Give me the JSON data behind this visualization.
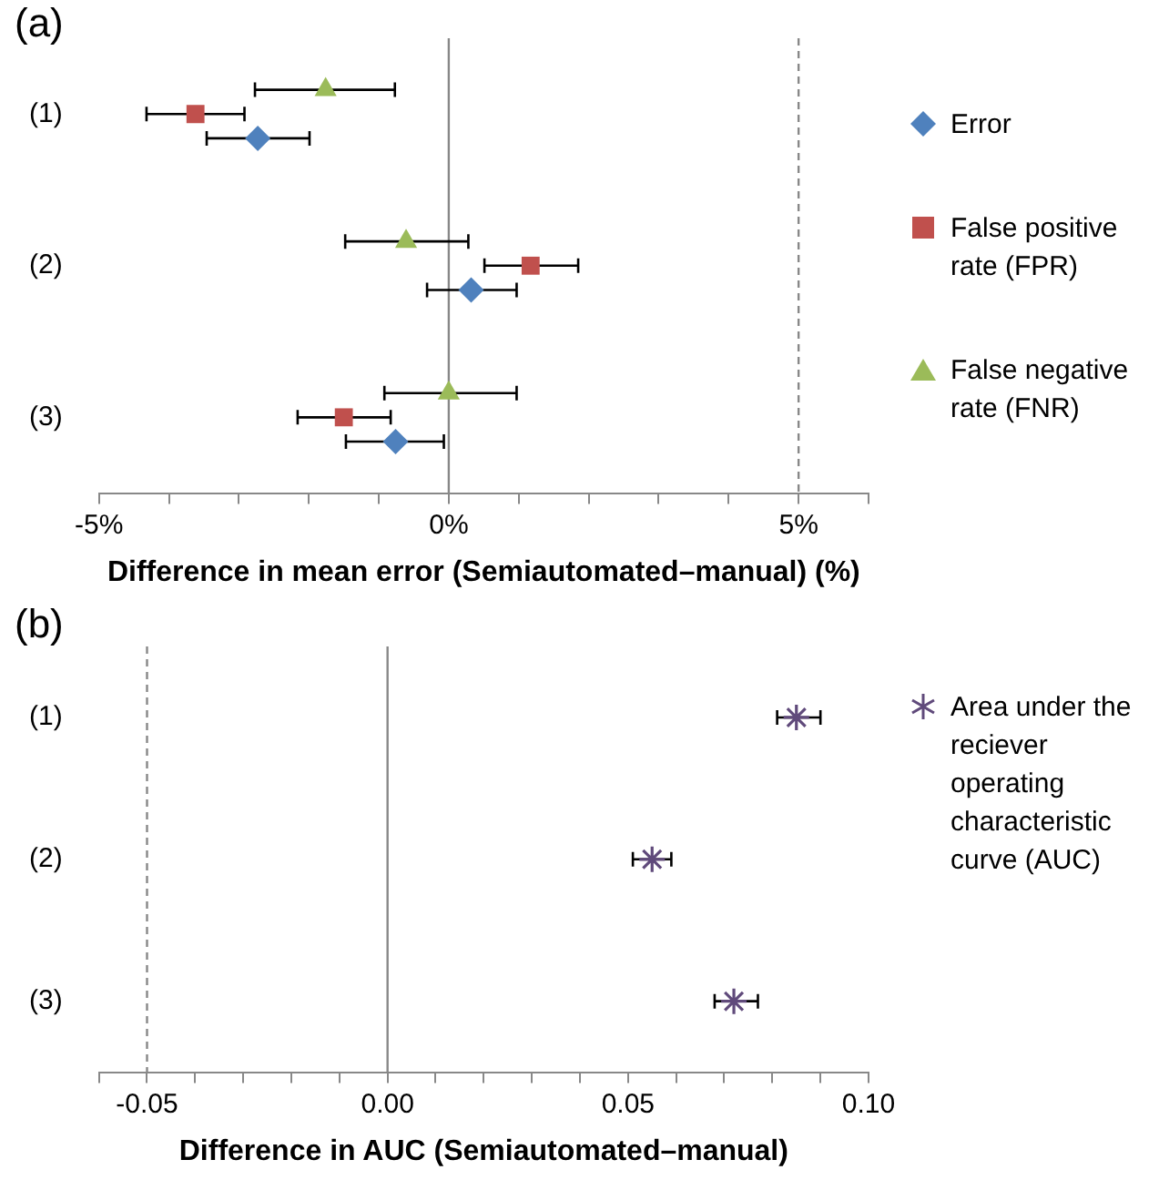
{
  "chart_data": [
    {
      "type": "scatter",
      "orientation": "horizontal",
      "title": "(a)",
      "xlabel": "Difference in mean error (Semiautomated–manual) (%)",
      "categories": [
        "(1)",
        "(2)",
        "(3)"
      ],
      "xlim": [
        -5,
        6
      ],
      "xticks": [
        {
          "value": -5,
          "label": "-5%"
        },
        {
          "value": -4,
          "label": null
        },
        {
          "value": -3,
          "label": null
        },
        {
          "value": -2,
          "label": null
        },
        {
          "value": -1,
          "label": null
        },
        {
          "value": 0,
          "label": "0%"
        },
        {
          "value": 1,
          "label": null
        },
        {
          "value": 2,
          "label": null
        },
        {
          "value": 3,
          "label": null
        },
        {
          "value": 4,
          "label": null
        },
        {
          "value": 5,
          "label": "5%"
        },
        {
          "value": 6,
          "label": null
        }
      ],
      "series": [
        {
          "name": "Error",
          "color": "#4f81bd",
          "marker": "diamond",
          "values": [
            -2.73,
            0.32,
            -0.76
          ],
          "errors": [
            [
              -3.46,
              -1.99
            ],
            [
              -0.31,
              0.97
            ],
            [
              -1.47,
              -0.07
            ]
          ]
        },
        {
          "name": "False positive rate (FPR)",
          "color": "#c0504d",
          "marker": "square",
          "values": [
            -3.62,
            1.17,
            -1.5
          ],
          "errors": [
            [
              -4.32,
              -2.92
            ],
            [
              0.51,
              1.85
            ],
            [
              -2.16,
              -0.83
            ]
          ]
        },
        {
          "name": "False negative rate (FNR)",
          "color": "#9bbb59",
          "marker": "triangle",
          "values": [
            -1.76,
            -0.61,
            0.0
          ],
          "errors": [
            [
              -2.77,
              -0.77
            ],
            [
              -1.48,
              0.28
            ],
            [
              -0.92,
              0.97
            ]
          ]
        }
      ],
      "ref_lines": [
        {
          "axis": "x",
          "value": 0,
          "color": "#888888",
          "line_style": "solid"
        },
        {
          "axis": "x",
          "value": 5,
          "color": "#888888",
          "line_style": "dashed"
        }
      ],
      "legend": "right",
      "grid": false
    },
    {
      "type": "scatter",
      "orientation": "horizontal",
      "title": "(b)",
      "xlabel": "Difference in AUC (Semiautomated–manual)",
      "categories": [
        "(1)",
        "(2)",
        "(3)"
      ],
      "xlim": [
        -0.06,
        0.1
      ],
      "xticks": [
        {
          "value": -0.06,
          "label": null
        },
        -0.05,
        {
          "value": -0.04,
          "label": null
        },
        {
          "value": -0.03,
          "label": null
        },
        {
          "value": -0.02,
          "label": null
        },
        {
          "value": -0.01,
          "label": null
        },
        {
          "value": 0,
          "label": "0.00"
        },
        {
          "value": 0.01,
          "label": null
        },
        {
          "value": 0.02,
          "label": null
        },
        {
          "value": 0.03,
          "label": null
        },
        {
          "value": 0.04,
          "label": null
        },
        0.05,
        {
          "value": 0.06,
          "label": null
        },
        {
          "value": 0.07,
          "label": null
        },
        {
          "value": 0.08,
          "label": null
        },
        {
          "value": 0.09,
          "label": null
        },
        {
          "value": 0.1,
          "label": "0.10"
        }
      ],
      "series": [
        {
          "name": "Area under the reciever operating characteristic curve (AUC)",
          "color": "#604a7b",
          "marker": "cross",
          "values": [
            0.085,
            0.055,
            0.072
          ],
          "errors": [
            [
              0.081,
              0.09
            ],
            [
              0.051,
              0.059
            ],
            [
              0.068,
              0.077
            ]
          ]
        }
      ],
      "ref_lines": [
        {
          "axis": "x",
          "value": -0.05,
          "color": "#888888",
          "line_style": "dashed"
        },
        {
          "axis": "x",
          "value": 0,
          "color": "#888888",
          "line_style": "solid"
        }
      ],
      "legend": "right",
      "grid": false
    }
  ]
}
